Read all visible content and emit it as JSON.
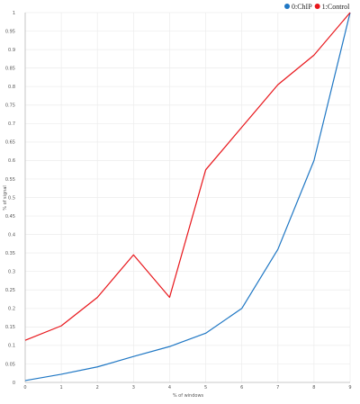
{
  "chart_data": {
    "type": "line",
    "xlabel": "% of windows",
    "ylabel": "% of signal",
    "x": [
      0,
      1,
      2,
      3,
      4,
      5,
      6,
      7,
      8,
      9
    ],
    "xlim": [
      0,
      9
    ],
    "ylim": [
      0,
      1
    ],
    "x_ticks": [
      "0",
      "1",
      "2",
      "3",
      "4",
      "5",
      "6",
      "7",
      "8",
      "9"
    ],
    "y_ticks": [
      "0",
      "0.05",
      "0.1",
      "0.15",
      "0.2",
      "0.25",
      "0.3",
      "0.35",
      "0.4",
      "0.45",
      "0.5",
      "0.55",
      "0.6",
      "0.65",
      "0.7",
      "0.75",
      "0.8",
      "0.85",
      "0.9",
      "0.95",
      "1"
    ],
    "grid": true,
    "legend_position": "top-right",
    "series": [
      {
        "name": "0:ChIP",
        "color": "#1f77c4",
        "values": [
          0.005,
          0.022,
          0.042,
          0.07,
          0.097,
          0.133,
          0.2,
          0.36,
          0.6,
          1.0
        ]
      },
      {
        "name": "1:Control",
        "color": "#e8161b",
        "values": [
          0.114,
          0.153,
          0.23,
          0.345,
          0.23,
          0.575,
          0.69,
          0.805,
          0.885,
          1.0
        ]
      }
    ]
  }
}
